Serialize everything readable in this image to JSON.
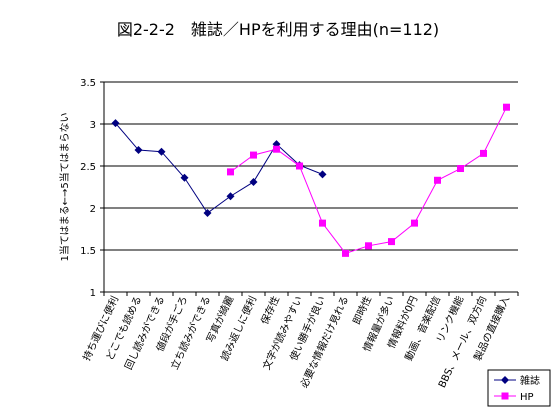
{
  "chart_data": {
    "type": "line",
    "title": "図2-2-2　雑誌／HPを利用する理由(n=112)",
    "ylabel": "1当てはまる←→5当てはまらない",
    "ylim": [
      1,
      3.5
    ],
    "yticks": [
      "1",
      "1.5",
      "2",
      "2.5",
      "3",
      "3.5"
    ],
    "grid": "horizontal",
    "legend_position": "bottom-right",
    "categories": [
      "持ち運びに便利",
      "どこでも読める",
      "回し読みができる",
      "値段が手ごろ",
      "立ち読みができる",
      "写真が綺麗",
      "読み返しに便利",
      "保存性",
      "文字が読みやすい",
      "使い勝手が良い",
      "必要な情報だけ見れる",
      "即時性",
      "情報量が多い",
      "情報料が0円",
      "動画、音楽配信",
      "リンク機能",
      "BBS、メール、双方向",
      "製品の直接購入"
    ],
    "series": [
      {
        "name": "雑誌",
        "color": "#000080",
        "marker": "diamond",
        "values": [
          3.01,
          2.69,
          2.67,
          2.36,
          1.94,
          2.14,
          2.31,
          2.76,
          2.51,
          2.4,
          null,
          null,
          null,
          null,
          null,
          null,
          null,
          null
        ]
      },
      {
        "name": "HP",
        "color": "#ff00ff",
        "marker": "square",
        "values": [
          null,
          null,
          null,
          null,
          null,
          2.43,
          2.63,
          2.7,
          2.5,
          1.82,
          1.46,
          1.55,
          1.6,
          1.82,
          2.33,
          2.47,
          2.65,
          3.2
        ]
      }
    ]
  }
}
